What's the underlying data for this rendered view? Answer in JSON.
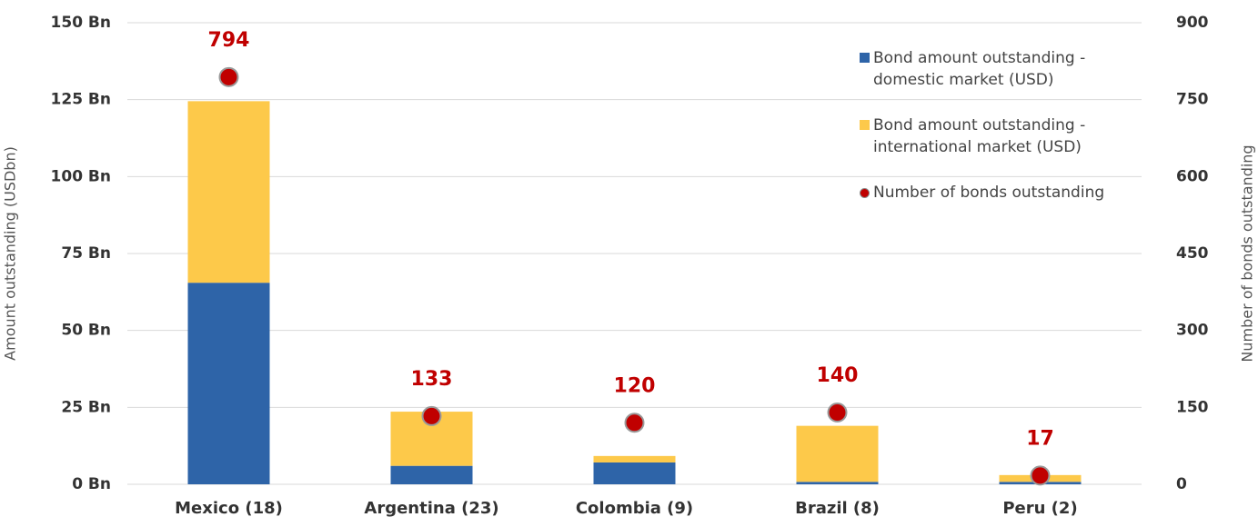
{
  "chart_data": {
    "type": "bar",
    "stacked": true,
    "y_label": "Amount outstanding (USDbn)",
    "y2_label": "Number of bonds outstanding",
    "categories": [
      "Mexico (18)",
      "Argentina (23)",
      "Colombia (9)",
      "Brazil (8)",
      "Peru (2)"
    ],
    "series": [
      {
        "name": "Bond amount outstanding - domestic market (USD)",
        "color": "#2e64a8",
        "values": [
          65.5,
          6,
          7.1,
          0.8,
          0.8
        ]
      },
      {
        "name": "Bond amount outstanding - international market (USD)",
        "color": "#fdc94a",
        "values": [
          59,
          17.6,
          2.1,
          18.2,
          2.2
        ]
      },
      {
        "name": "Number of bonds outstanding",
        "color": "#c00000",
        "axis": "y2",
        "type": "scatter",
        "values": [
          794,
          133,
          120,
          140,
          17
        ]
      }
    ],
    "ylim": [
      0,
      150
    ],
    "yticks": [
      {
        "value": 0,
        "label": "0 Bn"
      },
      {
        "value": 25,
        "label": "25 Bn"
      },
      {
        "value": 50,
        "label": "50 Bn"
      },
      {
        "value": 75,
        "label": "75 Bn"
      },
      {
        "value": 100,
        "label": "100 Bn"
      },
      {
        "value": 125,
        "label": "125 Bn"
      },
      {
        "value": 150,
        "label": "150 Bn"
      }
    ],
    "y2lim": [
      0,
      900
    ],
    "y2ticks": [
      0,
      150,
      300,
      450,
      600,
      750,
      900
    ],
    "grid": true
  }
}
